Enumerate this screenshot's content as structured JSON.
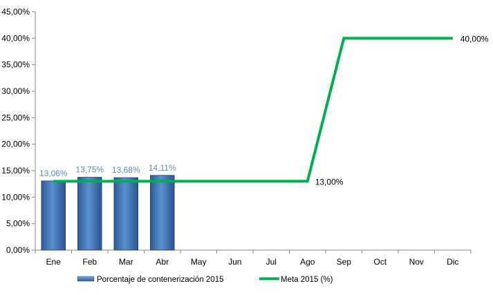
{
  "chart_data": {
    "type": "bar",
    "categories": [
      "Ene",
      "Feb",
      "Mar",
      "Abr",
      "May",
      "Jun",
      "Jul",
      "Ago",
      "Sep",
      "Oct",
      "Nov",
      "Dic"
    ],
    "ylim": [
      0,
      45
    ],
    "ytick_step": 5,
    "ytick_labels": [
      "0,00%",
      "5,00%",
      "10,00%",
      "15,00%",
      "20,00%",
      "25,00%",
      "30,00%",
      "35,00%",
      "40,00%",
      "45,00%"
    ],
    "grid": false,
    "legend_position": "bottom",
    "series": [
      {
        "name": "Porcentaje de contenerización 2015",
        "type": "bar",
        "color": "#4A7EBB",
        "label_color": "#5B8AC6",
        "values": [
          13.06,
          13.75,
          13.68,
          14.11,
          null,
          null,
          null,
          null,
          null,
          null,
          null,
          null
        ],
        "data_labels": [
          "13,06%",
          "13,75%",
          "13,68%",
          "14,11%",
          "",
          "",
          "",
          "",
          "",
          "",
          "",
          ""
        ]
      },
      {
        "name": "Meta 2015 (%)",
        "type": "line",
        "color": "#00B050",
        "values": [
          13,
          13,
          13,
          13,
          13,
          13,
          13,
          13,
          40,
          40,
          40,
          40
        ],
        "data_labels": [
          "",
          "",
          "",
          "",
          "",
          "",
          "",
          "13,00%",
          "",
          "",
          "",
          "40,00%"
        ]
      }
    ]
  }
}
